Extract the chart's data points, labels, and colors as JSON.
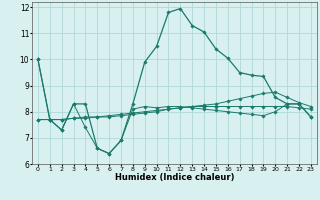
{
  "title": "",
  "xlabel": "Humidex (Indice chaleur)",
  "background_color": "#d8f0f0",
  "grid_color": "#b0d8d8",
  "line_color": "#1a7a6a",
  "xlim": [
    -0.5,
    23.5
  ],
  "ylim": [
    6,
    12.2
  ],
  "yticks": [
    6,
    7,
    8,
    9,
    10,
    11,
    12
  ],
  "xticks": [
    0,
    1,
    2,
    3,
    4,
    5,
    6,
    7,
    8,
    9,
    10,
    11,
    12,
    13,
    14,
    15,
    16,
    17,
    18,
    19,
    20,
    21,
    22,
    23
  ],
  "line_jagged_x": [
    0,
    1,
    2,
    3,
    4,
    5,
    6,
    7,
    8,
    9,
    10,
    11,
    12,
    13,
    14,
    15,
    16,
    17,
    18,
    19,
    20,
    21,
    22,
    23
  ],
  "line_jagged_y": [
    10.0,
    7.7,
    7.3,
    8.3,
    7.4,
    6.6,
    6.4,
    6.9,
    8.1,
    8.2,
    8.15,
    8.2,
    8.2,
    8.15,
    8.1,
    8.05,
    8.0,
    7.95,
    7.9,
    7.85,
    8.0,
    8.3,
    8.3,
    7.8
  ],
  "line_rise_x": [
    0,
    1,
    2,
    3,
    4,
    5,
    6,
    7,
    8,
    9,
    10,
    11,
    12,
    13,
    14,
    15,
    16,
    17,
    18,
    19,
    20,
    21,
    22,
    23
  ],
  "line_rise_y": [
    7.7,
    7.7,
    7.7,
    7.75,
    7.75,
    7.8,
    7.8,
    7.85,
    7.9,
    7.95,
    8.0,
    8.1,
    8.15,
    8.2,
    8.25,
    8.3,
    8.4,
    8.5,
    8.6,
    8.7,
    8.75,
    8.55,
    8.35,
    8.2
  ],
  "line_flat_x": [
    0,
    1,
    2,
    3,
    4,
    5,
    6,
    7,
    8,
    9,
    10,
    11,
    12,
    13,
    14,
    15,
    16,
    17,
    18,
    19,
    20,
    21,
    22,
    23
  ],
  "line_flat_y": [
    7.7,
    7.7,
    7.7,
    7.75,
    7.8,
    7.8,
    7.85,
    7.9,
    7.95,
    8.0,
    8.05,
    8.1,
    8.15,
    8.2,
    8.2,
    8.2,
    8.2,
    8.2,
    8.2,
    8.2,
    8.2,
    8.2,
    8.15,
    8.1
  ],
  "line_peak_x": [
    0,
    1,
    2,
    3,
    4,
    5,
    6,
    7,
    8,
    9,
    10,
    11,
    12,
    13,
    14,
    15,
    16,
    17,
    18,
    19,
    20,
    21,
    22,
    23
  ],
  "line_peak_y": [
    10.0,
    7.7,
    7.3,
    8.3,
    8.3,
    6.6,
    6.4,
    6.9,
    8.3,
    9.9,
    10.5,
    11.8,
    11.95,
    11.3,
    11.05,
    10.4,
    10.05,
    9.5,
    9.4,
    9.35,
    8.55,
    8.3,
    8.3,
    7.8
  ]
}
